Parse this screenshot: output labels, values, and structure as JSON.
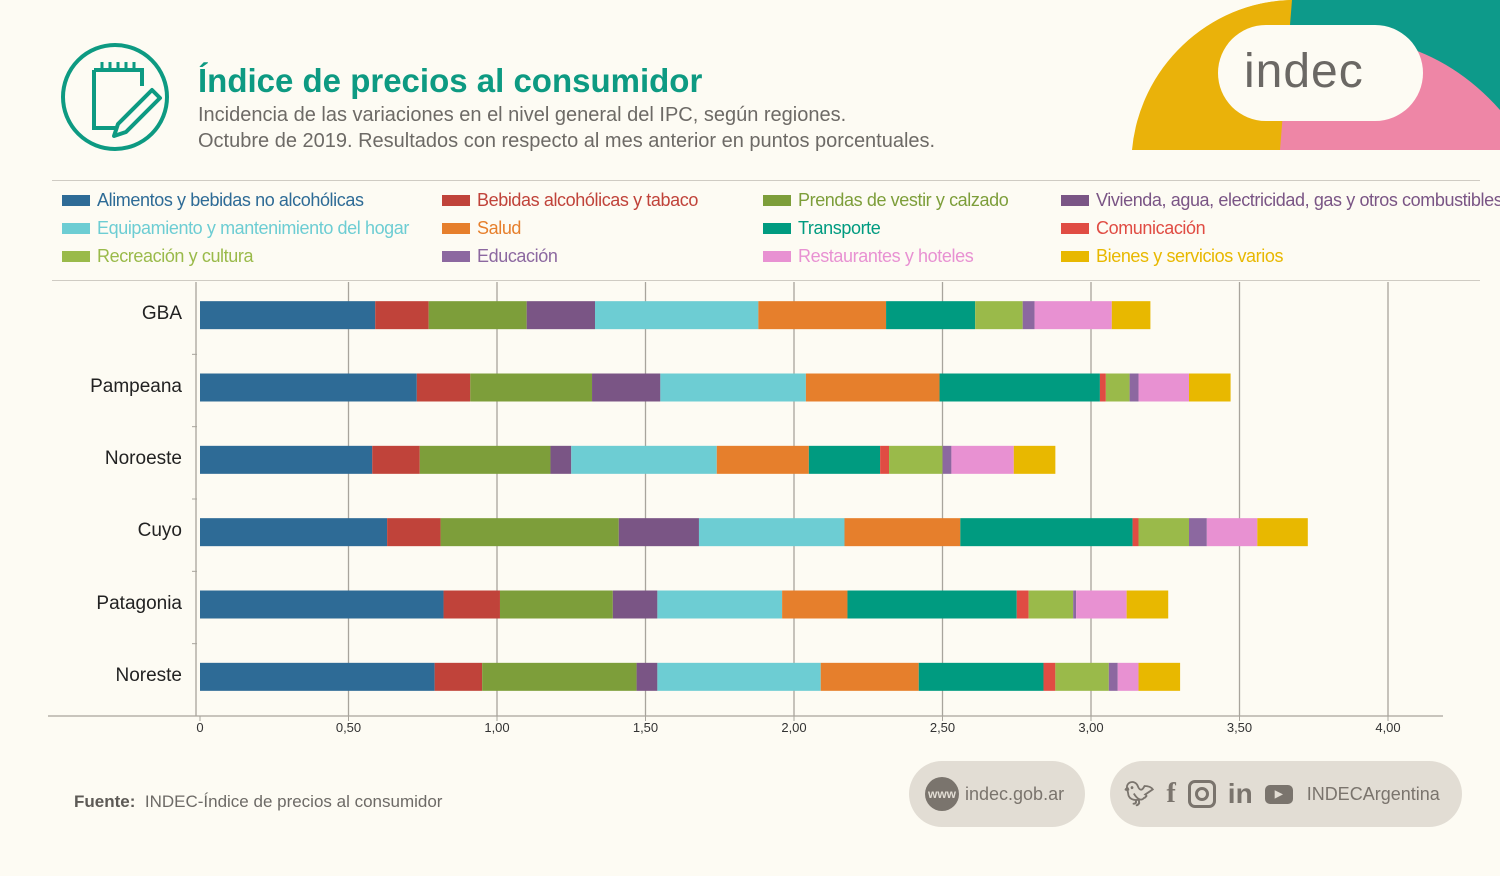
{
  "header": {
    "title": "Índice de precios al consumidor",
    "subtitle_1": "Incidencia de las variaciones en el nivel general del IPC, según regiones.",
    "subtitle_2": "Octubre de 2019. Resultados con respecto al mes anterior en puntos porcentuales.",
    "logo_text": "indec"
  },
  "footer": {
    "source_label": "Fuente:",
    "source_text": "INDEC-Índice de precios al consumidor",
    "www_badge": "www",
    "website": "indec.gob.ar",
    "social_handle": "INDECArgentina"
  },
  "chart_data": {
    "type": "bar",
    "orientation": "horizontal",
    "stacked": true,
    "categories": [
      "GBA",
      "Pampeana",
      "Noroeste",
      "Cuyo",
      "Patagonia",
      "Noreste"
    ],
    "xlim": [
      0,
      4
    ],
    "xticks": [
      "0",
      "0,50",
      "1,00",
      "1,50",
      "2,00",
      "2,50",
      "3,00",
      "3,50",
      "4,00"
    ],
    "grid": true,
    "legend_position": "top",
    "series": [
      {
        "name": "Alimentos y bebidas no alcohólicas",
        "color": "#2e6b96",
        "values": [
          0.59,
          0.73,
          0.58,
          0.63,
          0.82,
          0.79
        ]
      },
      {
        "name": "Bebidas alcohólicas y tabaco",
        "color": "#c0433a",
        "values": [
          0.18,
          0.18,
          0.16,
          0.18,
          0.19,
          0.16
        ]
      },
      {
        "name": "Prendas de vestir y calzado",
        "color": "#7d9e3a",
        "values": [
          0.33,
          0.41,
          0.44,
          0.6,
          0.38,
          0.52
        ]
      },
      {
        "name": "Vivienda, agua, electricidad, gas y otros combustibles",
        "color": "#7a5585",
        "values": [
          0.23,
          0.23,
          0.07,
          0.27,
          0.15,
          0.07
        ]
      },
      {
        "name": "Equipamiento y mantenimiento del hogar",
        "color": "#6dcdd3",
        "values": [
          0.55,
          0.49,
          0.49,
          0.49,
          0.42,
          0.55
        ]
      },
      {
        "name": "Salud",
        "color": "#e67f2c",
        "values": [
          0.43,
          0.45,
          0.31,
          0.39,
          0.22,
          0.33
        ]
      },
      {
        "name": "Transporte",
        "color": "#009b80",
        "values": [
          0.3,
          0.54,
          0.24,
          0.58,
          0.57,
          0.42
        ]
      },
      {
        "name": "Comunicación",
        "color": "#e04c43",
        "values": [
          0.0,
          0.02,
          0.03,
          0.02,
          0.04,
          0.04
        ]
      },
      {
        "name": "Recreación y cultura",
        "color": "#9aba4a",
        "values": [
          0.16,
          0.08,
          0.18,
          0.17,
          0.15,
          0.18
        ]
      },
      {
        "name": "Educación",
        "color": "#8c68a0",
        "values": [
          0.04,
          0.03,
          0.03,
          0.06,
          0.01,
          0.03
        ]
      },
      {
        "name": "Restaurantes y hoteles",
        "color": "#e891d2",
        "values": [
          0.26,
          0.17,
          0.21,
          0.17,
          0.17,
          0.07
        ]
      },
      {
        "name": "Bienes y servicios varios",
        "color": "#e8b800",
        "values": [
          0.13,
          0.14,
          0.14,
          0.17,
          0.14,
          0.14
        ]
      }
    ]
  }
}
